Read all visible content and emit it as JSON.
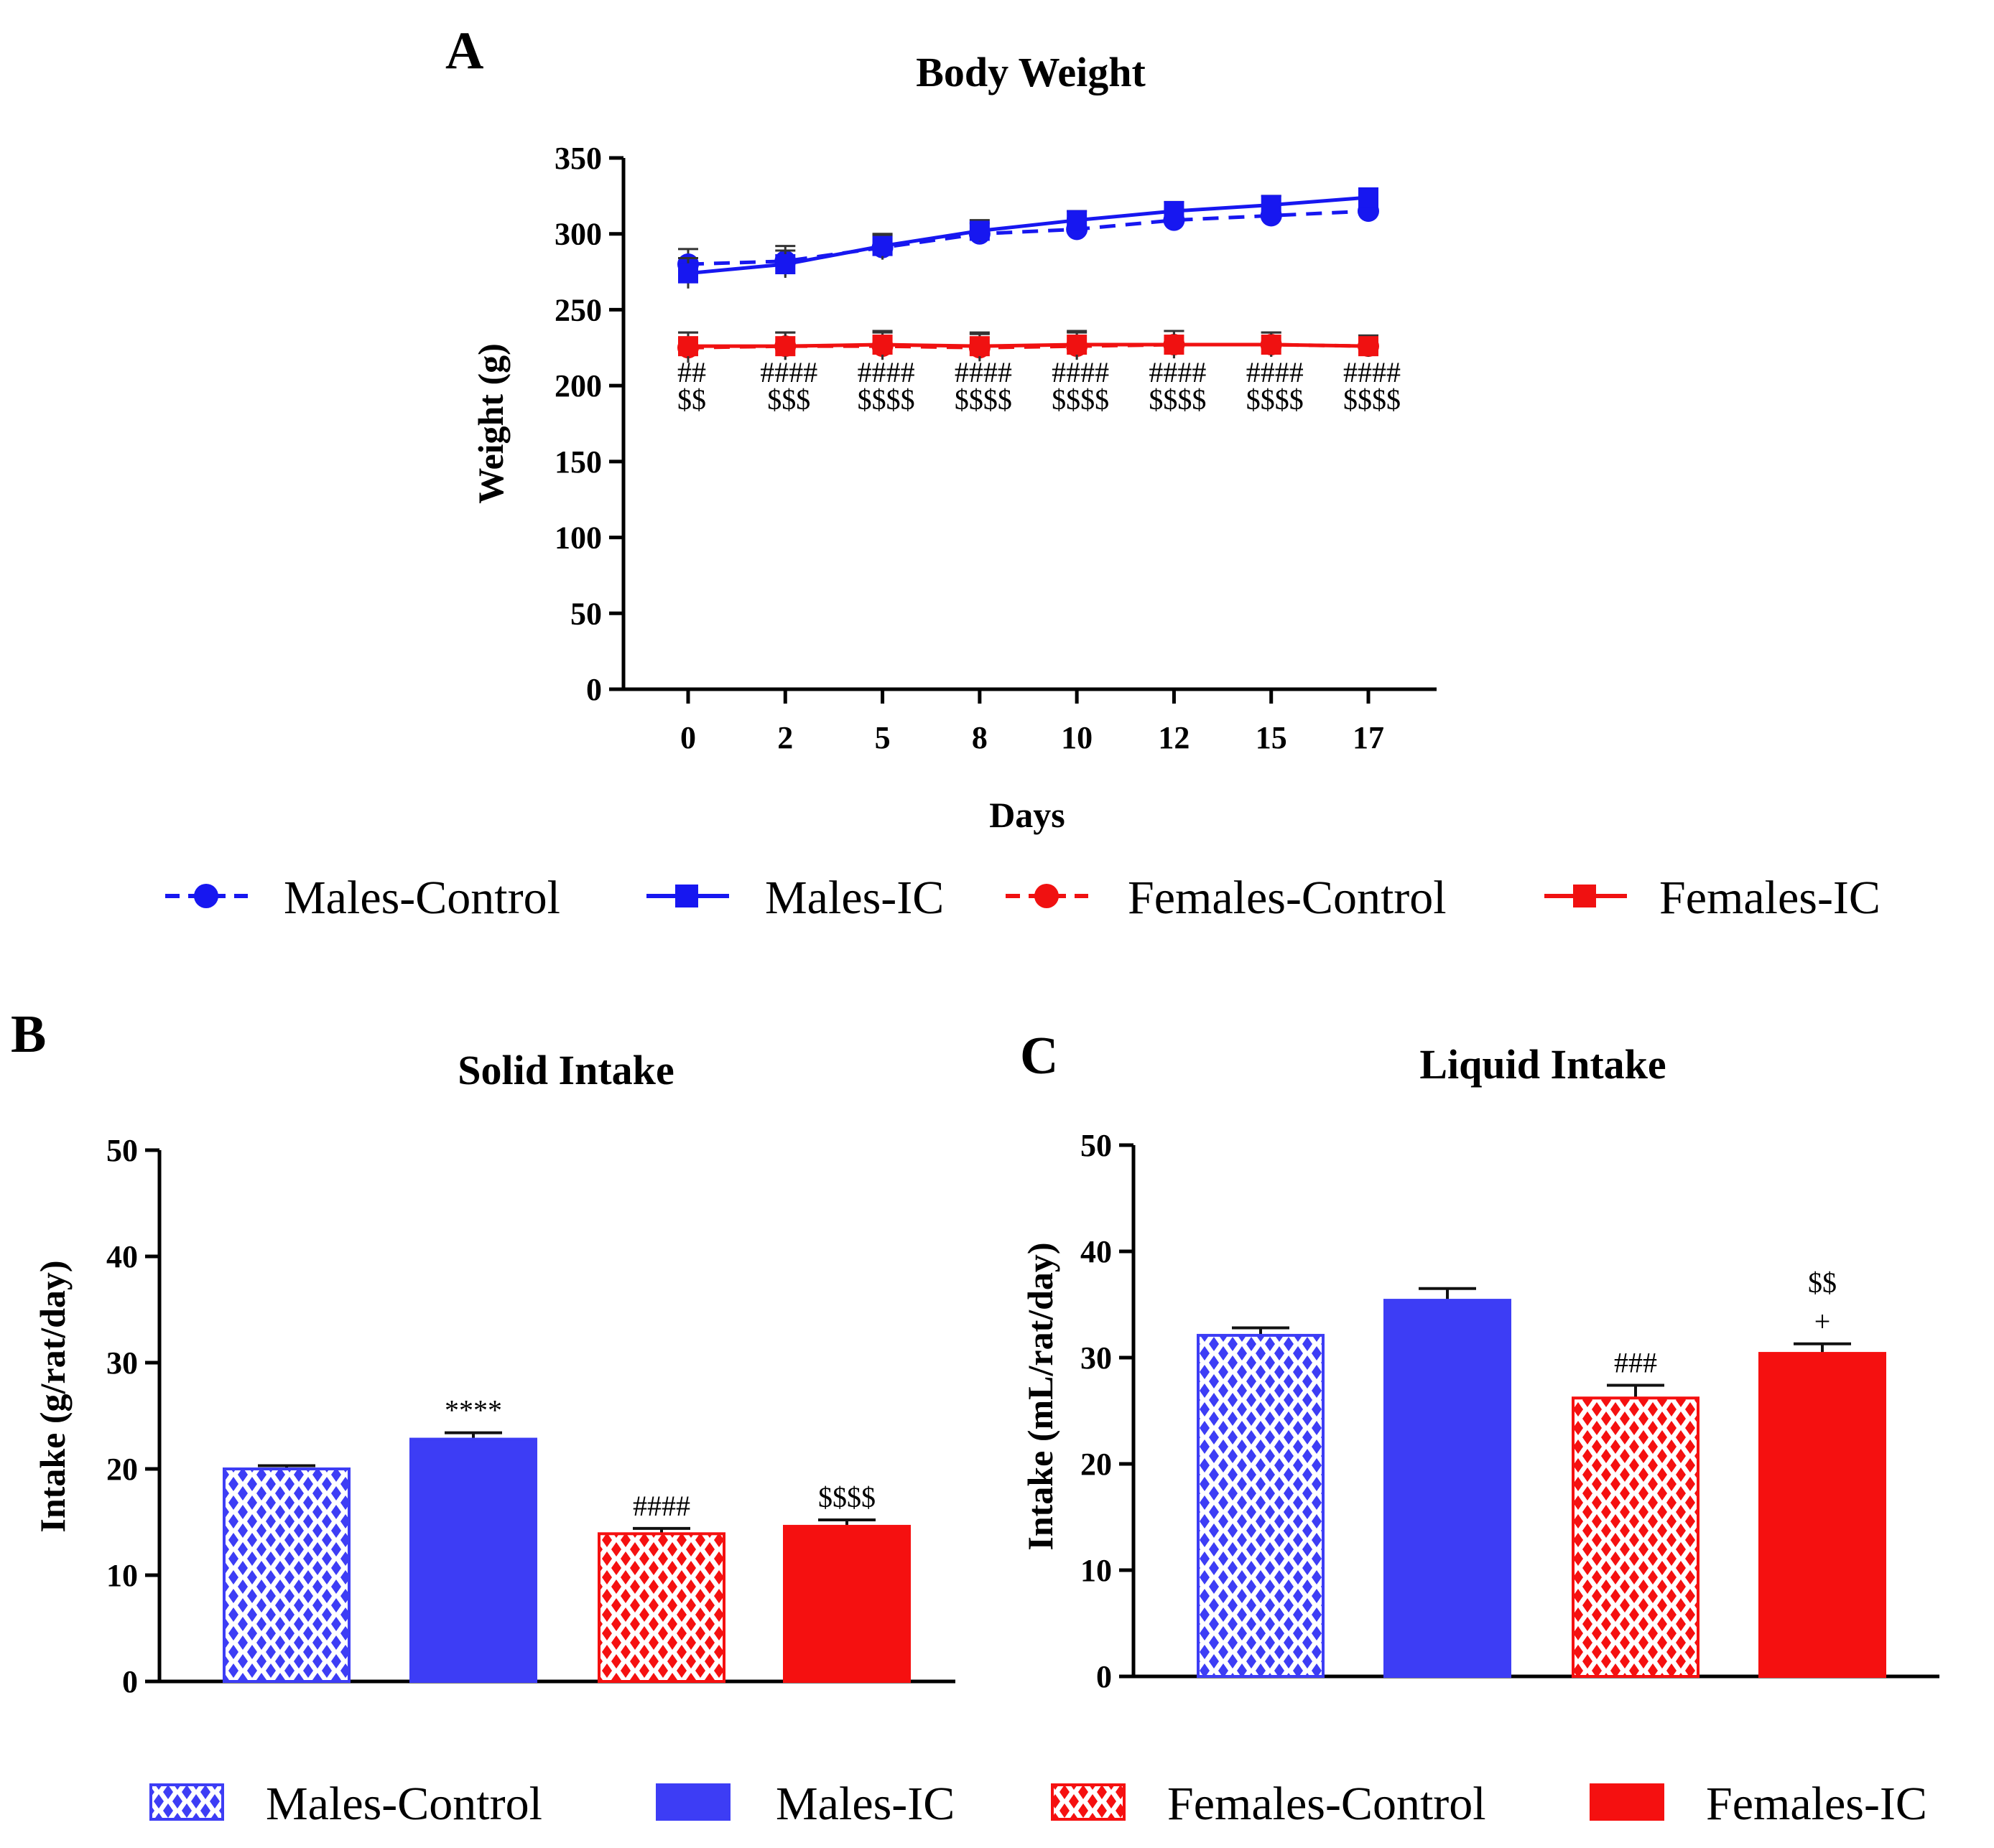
{
  "colors": {
    "male": "#1717f0",
    "female": "#f01111",
    "male_bar": "#3d3df5",
    "female_bar": "#f51010",
    "axis": "#000000"
  },
  "chart_data": [
    {
      "panel": "A",
      "type": "line",
      "title": "Body Weight",
      "xlabel": "Days",
      "ylabel": "Weight (g)",
      "categories": [
        "0",
        "2",
        "5",
        "8",
        "10",
        "12",
        "15",
        "17"
      ],
      "ylim": [
        0,
        350
      ],
      "yticks": [
        "0",
        "50",
        "100",
        "150",
        "200",
        "250",
        "300",
        "350"
      ],
      "series": [
        {
          "name": "Males-Control",
          "style": "dashed-circle",
          "color": "#1717f0",
          "values": [
            280,
            282,
            291,
            300,
            303,
            309,
            312,
            315
          ],
          "errors": [
            10,
            10,
            8,
            7,
            7,
            7,
            7,
            7
          ]
        },
        {
          "name": "Males-IC",
          "style": "solid-square",
          "color": "#1717f0",
          "values": [
            274,
            280,
            292,
            302,
            309,
            315,
            319,
            324
          ],
          "errors": [
            10,
            9,
            8,
            7,
            6,
            6,
            6,
            5
          ]
        },
        {
          "name": "Females-Control",
          "style": "dashed-circle",
          "color": "#f01111",
          "values": [
            225,
            226,
            226,
            225,
            226,
            227,
            227,
            226
          ],
          "errors": [
            10,
            9,
            9,
            9,
            9,
            9,
            8,
            7
          ]
        },
        {
          "name": "Females-IC",
          "style": "solid-square",
          "color": "#f01111",
          "values": [
            226,
            226,
            227,
            226,
            227,
            227,
            227,
            226
          ],
          "errors": [
            9,
            9,
            9,
            9,
            9,
            9,
            8,
            7
          ]
        }
      ],
      "annotations_top": [
        "##",
        "####",
        "####",
        "####",
        "####",
        "####",
        "####",
        "####"
      ],
      "annotations_bottom": [
        "$$",
        "$$$",
        "$$$$",
        "$$$$",
        "$$$$",
        "$$$$",
        "$$$$",
        "$$$$"
      ],
      "legend": [
        "Males-Control",
        "Males-IC",
        "Females-Control",
        "Females-IC"
      ]
    },
    {
      "panel": "B",
      "type": "bar",
      "title": "Solid Intake",
      "ylabel": "Intake (g/rat/day)",
      "ylim": [
        0,
        50
      ],
      "yticks": [
        "0",
        "10",
        "20",
        "30",
        "40",
        "50"
      ],
      "categories": [
        "Males-Control",
        "Males-IC",
        "Females-Control",
        "Females-IC"
      ],
      "values": [
        20.0,
        22.8,
        13.9,
        14.6
      ],
      "errors": [
        0.3,
        0.6,
        0.5,
        0.6
      ],
      "significance": [
        "",
        "****",
        "####",
        "$$$$"
      ]
    },
    {
      "panel": "C",
      "type": "bar",
      "title": "Liquid Intake",
      "ylabel": "Intake (mL/rat/day)",
      "ylim": [
        0,
        50
      ],
      "yticks": [
        "0",
        "10",
        "20",
        "30",
        "40",
        "50"
      ],
      "categories": [
        "Males-Control",
        "Males-IC",
        "Females-Control",
        "Females-IC"
      ],
      "values": [
        32.1,
        35.4,
        26.2,
        30.4
      ],
      "errors": [
        0.7,
        1.1,
        1.2,
        0.9
      ],
      "significance": [
        "",
        "",
        "###",
        "+"
      ],
      "significance_extra": [
        "",
        "",
        "",
        "$$"
      ]
    }
  ],
  "bar_legend": [
    "Males-Control",
    "Males-IC",
    "Females-Control",
    "Females-IC"
  ]
}
